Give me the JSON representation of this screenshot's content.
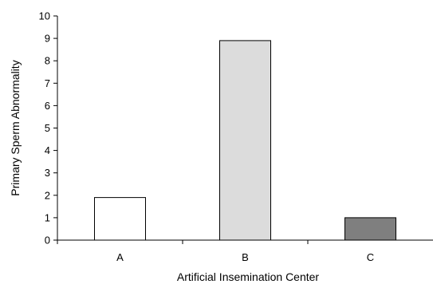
{
  "chart_data": {
    "type": "bar",
    "title": "",
    "xlabel": "Artificial Insemination Center",
    "ylabel": "Primary Sperm Abnormality",
    "categories": [
      "A",
      "B",
      "C"
    ],
    "values": [
      1.9,
      8.9,
      1.0
    ],
    "colors": [
      "#ffffff",
      "#dcdcdc",
      "#7f7f7f"
    ],
    "ylim": [
      0,
      10
    ],
    "yticks": [
      "0",
      "1",
      "2",
      "3",
      "4",
      "5",
      "6",
      "7",
      "8",
      "9",
      "10"
    ],
    "grid": false,
    "legend": "none"
  }
}
